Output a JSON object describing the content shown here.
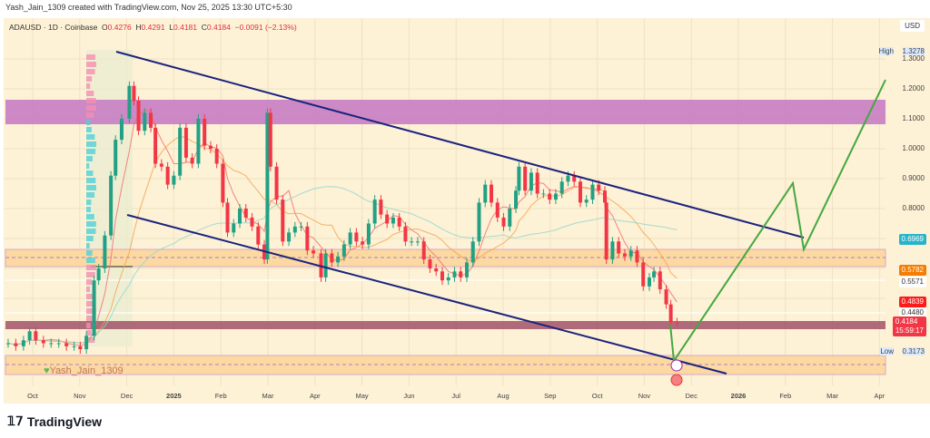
{
  "credit": "Yash_Jain_1309 created with TradingView.com, Nov 25, 2025 13:30 UTC+5:30",
  "legend": {
    "symbol": "ADAUSD · 1D · Coinbase",
    "o_label": "O",
    "o": "0.4276",
    "h_label": "H",
    "h": "0.4291",
    "l_label": "L",
    "l": "0.4181",
    "c_label": "C",
    "c": "0.4184",
    "change": "−0.0091 (−2.13%)"
  },
  "currency": "USD",
  "watermark": "Yash_Jain_1309",
  "brand": "TradingView",
  "colors": {
    "up": "#22a083",
    "down": "#f23645",
    "channel": "#1a237e",
    "projection": "#43a840",
    "supply_zone": "#c77dc3",
    "demand_zone": "#fbd9a0",
    "current_band": "#9c4a64"
  },
  "price_axis": {
    "ticks": [
      "1.3000",
      "1.2000",
      "1.1000",
      "1.0000",
      "0.9000",
      "0.8000"
    ],
    "high": {
      "label": "High",
      "value": "1.3278"
    },
    "low": {
      "label": "Low",
      "value": "0.3173"
    },
    "tags": [
      {
        "value": "0.6969",
        "color": "#26b5c8"
      },
      {
        "value": "0.5782",
        "color": "#f57c00"
      },
      {
        "value": "0.5571",
        "color": "#ffffff"
      },
      {
        "value": "0.4839",
        "color": "#ff1a1a"
      },
      {
        "value": "0.4480",
        "color": "#ffffff"
      }
    ],
    "last": {
      "value": "0.4184",
      "countdown": "15:59:17",
      "color": "#f23645"
    }
  },
  "time_axis": [
    "Oct",
    "Nov",
    "Dec",
    "2025",
    "Feb",
    "Mar",
    "Apr",
    "May",
    "Jun",
    "Jul",
    "Aug",
    "Sep",
    "Oct",
    "Nov",
    "Dec",
    "2026",
    "Feb",
    "Mar",
    "Apr"
  ],
  "chart_data": {
    "type": "candlestick",
    "symbol": "ADAUSD",
    "interval": "1D",
    "scale": "linear",
    "ylim": [
      0.24,
      1.33
    ],
    "dates": [
      "2024-09-15",
      "2024-09-20",
      "2024-09-25",
      "2024-09-29",
      "2024-10-03",
      "2024-10-08",
      "2024-10-13",
      "2024-10-18",
      "2024-10-23",
      "2024-10-28",
      "2024-11-01",
      "2024-11-05",
      "2024-11-10",
      "2024-11-13",
      "2024-11-17",
      "2024-11-21",
      "2024-11-24",
      "2024-11-28",
      "2024-12-03",
      "2024-12-06",
      "2024-12-09",
      "2024-12-13",
      "2024-12-17",
      "2024-12-20",
      "2024-12-24",
      "2024-12-28",
      "2025-01-01",
      "2025-01-05",
      "2025-01-09",
      "2025-01-13",
      "2025-01-17",
      "2025-01-21",
      "2025-01-25",
      "2025-01-29",
      "2025-02-02",
      "2025-02-05",
      "2025-02-09",
      "2025-02-13",
      "2025-02-17",
      "2025-02-21",
      "2025-02-25",
      "2025-03-01",
      "2025-03-03",
      "2025-03-05",
      "2025-03-09",
      "2025-03-13",
      "2025-03-17",
      "2025-03-21",
      "2025-03-25",
      "2025-03-29",
      "2025-04-02",
      "2025-04-07",
      "2025-04-10",
      "2025-04-14",
      "2025-04-18",
      "2025-04-22",
      "2025-04-26",
      "2025-04-30",
      "2025-05-04",
      "2025-05-08",
      "2025-05-12",
      "2025-05-16",
      "2025-05-20",
      "2025-05-24",
      "2025-05-28",
      "2025-06-01",
      "2025-06-05",
      "2025-06-09",
      "2025-06-13",
      "2025-06-17",
      "2025-06-21",
      "2025-06-25",
      "2025-06-29",
      "2025-07-03",
      "2025-07-07",
      "2025-07-11",
      "2025-07-15",
      "2025-07-19",
      "2025-07-23",
      "2025-07-27",
      "2025-07-31",
      "2025-08-04",
      "2025-08-08",
      "2025-08-12",
      "2025-08-14",
      "2025-08-18",
      "2025-08-22",
      "2025-08-26",
      "2025-08-30",
      "2025-09-03",
      "2025-09-07",
      "2025-09-11",
      "2025-09-15",
      "2025-09-19",
      "2025-09-23",
      "2025-09-27",
      "2025-10-01",
      "2025-10-05",
      "2025-10-09",
      "2025-10-10",
      "2025-10-14",
      "2025-10-18",
      "2025-10-22",
      "2025-10-26",
      "2025-10-30",
      "2025-11-03",
      "2025-11-07",
      "2025-11-10",
      "2025-11-14",
      "2025-11-18",
      "2025-11-21",
      "2025-11-25"
    ],
    "close": [
      0.35,
      0.34,
      0.36,
      0.39,
      0.36,
      0.35,
      0.35,
      0.35,
      0.34,
      0.34,
      0.33,
      0.375,
      0.56,
      0.6,
      0.71,
      0.91,
      1.03,
      1.1,
      1.21,
      1.16,
      1.06,
      1.12,
      1.07,
      0.95,
      0.94,
      0.88,
      0.91,
      1.07,
      0.97,
      0.95,
      1.1,
      1.01,
      1.0,
      0.95,
      0.82,
      0.72,
      0.75,
      0.8,
      0.77,
      0.74,
      0.68,
      0.63,
      1.12,
      0.94,
      0.83,
      0.69,
      0.72,
      0.74,
      0.74,
      0.66,
      0.65,
      0.57,
      0.65,
      0.62,
      0.64,
      0.68,
      0.72,
      0.69,
      0.68,
      0.75,
      0.83,
      0.78,
      0.75,
      0.77,
      0.74,
      0.69,
      0.69,
      0.69,
      0.63,
      0.6,
      0.59,
      0.56,
      0.57,
      0.59,
      0.57,
      0.62,
      0.69,
      0.82,
      0.88,
      0.82,
      0.77,
      0.74,
      0.8,
      0.86,
      0.94,
      0.86,
      0.92,
      0.85,
      0.85,
      0.83,
      0.85,
      0.89,
      0.91,
      0.89,
      0.82,
      0.83,
      0.88,
      0.86,
      0.82,
      0.63,
      0.69,
      0.65,
      0.64,
      0.66,
      0.62,
      0.54,
      0.57,
      0.59,
      0.53,
      0.48,
      0.42,
      0.4184
    ]
  }
}
